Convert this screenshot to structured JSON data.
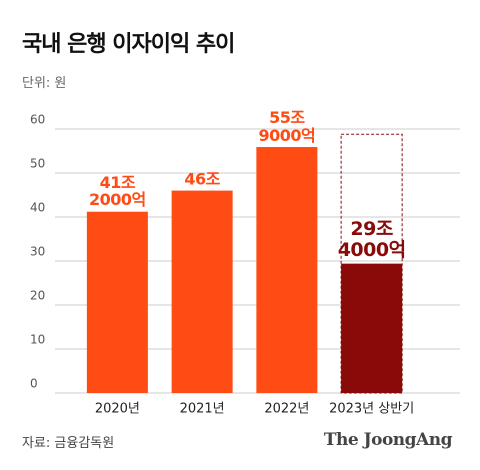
{
  "chart_data": {
    "type": "bar",
    "title": "국내 은행 이자이익 추이",
    "subtitle": "단위: 원",
    "categories": [
      "2020년",
      "2021년",
      "2022년",
      "2023년 상반기"
    ],
    "values": [
      41.2,
      46,
      55.9,
      29.4
    ],
    "value_labels": [
      "41조\n2000억",
      "46조",
      "55조\n9000억",
      "29조\n4000억"
    ],
    "colors": [
      "#ff4b14",
      "#ff4b14",
      "#ff4b14",
      "#8a0a0a"
    ],
    "dashed_values": [
      null,
      null,
      null,
      58.8
    ],
    "dashed_color": "#8a0a0a",
    "ylim": [
      0,
      60
    ],
    "yticks": [
      0,
      10,
      20,
      30,
      40,
      50,
      60
    ],
    "grid": true,
    "source": "자료: 금융감독원",
    "logo": "The JoongAng"
  }
}
